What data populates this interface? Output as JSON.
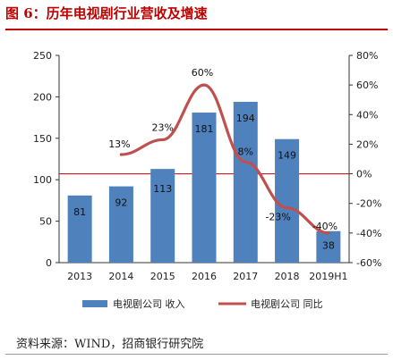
{
  "figure": {
    "title": "图 6：历年电视剧行业营收及增速",
    "source": "资料来源：WIND，招商银行研究院"
  },
  "colors": {
    "bar": "#4f81bd",
    "line": "#c0504d",
    "zero_line": "#c00000",
    "title": "#c00000"
  },
  "chart_data": {
    "type": "bar+line",
    "title": "",
    "categories": [
      "2013",
      "2014",
      "2015",
      "2016",
      "2017",
      "2018",
      "2019H1"
    ],
    "series": [
      {
        "name": "电视剧公司 收入",
        "type": "bar",
        "axis": "left",
        "values": [
          81,
          92,
          113,
          181,
          194,
          149,
          38
        ],
        "labels": [
          "81",
          "92",
          "113",
          "181",
          "194",
          "149",
          "38"
        ]
      },
      {
        "name": "电视剧公司 同比",
        "type": "line",
        "axis": "right",
        "values": [
          null,
          13,
          23,
          60,
          8,
          -23,
          -40
        ],
        "labels": [
          "",
          "13%",
          "23%",
          "60%",
          "8%",
          "-23%",
          "-40%"
        ]
      }
    ],
    "y_left": {
      "label": "",
      "min": 0,
      "max": 250,
      "ticks": [
        0,
        50,
        100,
        150,
        200,
        250
      ],
      "tick_labels": [
        "0",
        "50",
        "100",
        "150",
        "200",
        "250"
      ]
    },
    "y_right": {
      "label": "",
      "min": -60,
      "max": 80,
      "ticks": [
        -60,
        -40,
        -20,
        0,
        20,
        40,
        60,
        80
      ],
      "tick_labels": [
        "-60%",
        "-40%",
        "-20%",
        "0%",
        "20%",
        "40%",
        "60%",
        "80%"
      ]
    },
    "grid": false,
    "legend_position": "bottom"
  }
}
